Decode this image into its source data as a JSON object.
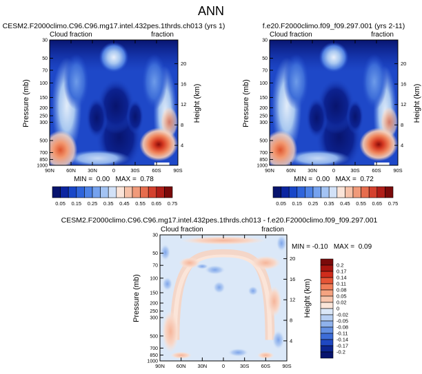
{
  "page": {
    "title": "ANN"
  },
  "colors": {
    "deep_blue": "#08146e",
    "blue": "#1f49c9",
    "mid_blue": "#4f7fe0",
    "light_blue": "#a9c8f0",
    "pale_blue": "#dbe8f8",
    "near_white": "#f3f6fb",
    "pale_orange": "#f8d8c8",
    "orange": "#f08a60",
    "red": "#d33020",
    "dark_red": "#7a0a0a"
  },
  "chart_data": [
    {
      "id": "left",
      "type": "heatmap",
      "title": "CESM2.F2000climo.C96.C96.mg17.intel.432pes.1thrds.ch013 (yrs 1)",
      "left_label": "Cloud fraction",
      "right_label": "fraction",
      "ylabel": "Pressure (mb)",
      "y2label": "Height (km)",
      "x_ticks": [
        "90N",
        "60N",
        "30N",
        "0",
        "30S",
        "60S",
        "90S"
      ],
      "p_ticks": [
        "30",
        "50",
        "70",
        "100",
        "150",
        "200",
        "250",
        "300",
        "500",
        "700",
        "850",
        "1000"
      ],
      "height_ticks": [
        "20",
        "16",
        "12",
        "8",
        "4"
      ],
      "stats": "MIN =  0.00   MAX =  0.78",
      "min": 0.0,
      "max": 0.78
    },
    {
      "id": "right",
      "type": "heatmap",
      "title": "f.e20.F2000climo.f09_f09.297.001 (yrs 2-11)",
      "left_label": "Cloud fraction",
      "right_label": "fraction",
      "ylabel": "Pressure (mb)",
      "y2label": "Height (km)",
      "x_ticks": [
        "90N",
        "60N",
        "30N",
        "0",
        "30S",
        "60S",
        "90S"
      ],
      "p_ticks": [
        "30",
        "50",
        "70",
        "100",
        "150",
        "200",
        "250",
        "300",
        "500",
        "700",
        "850",
        "1000"
      ],
      "height_ticks": [
        "20",
        "16",
        "12",
        "8",
        "4"
      ],
      "stats": "MIN =  0.00   MAX =  0.72",
      "min": 0.0,
      "max": 0.72
    },
    {
      "id": "diff",
      "type": "heatmap",
      "title": "CESM2.F2000climo.C96.C96.mg17.intel.432pes.1thrds.ch013 - f.e20.F2000climo.f09_f09.297.001",
      "left_label": "Cloud fraction",
      "right_label": "fraction",
      "ylabel": "Pressure (mb)",
      "y2label": "Height (km)",
      "x_ticks": [
        "90N",
        "60N",
        "30N",
        "0",
        "30S",
        "60S",
        "90S"
      ],
      "p_ticks": [
        "30",
        "50",
        "70",
        "100",
        "150",
        "200",
        "250",
        "300",
        "500",
        "700",
        "850",
        "1000"
      ],
      "height_ticks": [
        "20",
        "16",
        "12",
        "8",
        "4"
      ],
      "stats": "MIN = -0.10   MAX =  0.09",
      "min": -0.1,
      "max": 0.09
    }
  ],
  "colorbar_abs": {
    "labels": [
      "0.05",
      "0.15",
      "0.25",
      "0.35",
      "0.45",
      "0.55",
      "0.65",
      "0.75"
    ],
    "colors": [
      "#08146e",
      "#0b25a0",
      "#1846c8",
      "#2f64db",
      "#4d82e6",
      "#75a2ee",
      "#a3c3f3",
      "#d2e1f7",
      "#fbe4d8",
      "#f6c1a8",
      "#f09a7a",
      "#e66d4e",
      "#d4412e",
      "#b01e18",
      "#7a0a0a"
    ]
  },
  "colorbar_diff": {
    "labels": [
      "0.2",
      "0.17",
      "0.14",
      "0.11",
      "0.08",
      "0.05",
      "0.02",
      "0",
      "-0.02",
      "-0.05",
      "-0.08",
      "-0.11",
      "-0.14",
      "-0.17",
      "-0.2"
    ],
    "colors": [
      "#7a0a0a",
      "#a8150f",
      "#cf2c1c",
      "#e65536",
      "#f07e59",
      "#f5a381",
      "#f8c5ad",
      "#fbe5d9",
      "#dbe8f8",
      "#b7cff3",
      "#8fb2ec",
      "#6490e3",
      "#3d6dd8",
      "#1f48c2",
      "#0c2590",
      "#08146e"
    ]
  }
}
